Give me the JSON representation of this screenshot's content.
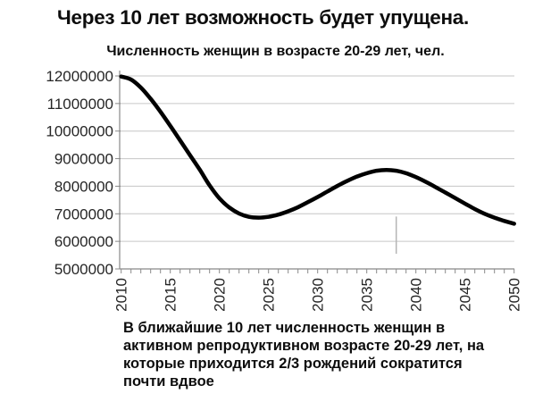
{
  "slide": {
    "title": "Через 10 лет возможность будет упущена.",
    "caption": [
      "В ближайшие 10 лет численность женщин в",
      "активном репродуктивном возрасте 20-29 лет, на",
      "которые приходится 2/3 рождений сократится",
      "почти вдвое"
    ]
  },
  "chart_data": {
    "type": "line",
    "title": "Численность женщин в возрасте 20-29 лет, чел.",
    "xlabel": "",
    "ylabel": "",
    "xlim": [
      2010,
      2050
    ],
    "ylim": [
      5000000,
      12000000
    ],
    "grid": true,
    "legend": false,
    "line_color": "#000000",
    "gridline_color": "#c6c6c6",
    "axis_color": "#898989",
    "marker_color": "#b5b5b5",
    "y_ticks": [
      5000000,
      6000000,
      7000000,
      8000000,
      9000000,
      10000000,
      11000000,
      12000000
    ],
    "x_ticks": [
      2010,
      2015,
      2020,
      2025,
      2030,
      2035,
      2040,
      2045,
      2050
    ],
    "x": [
      2010,
      2011,
      2012,
      2013,
      2014,
      2015,
      2016,
      2017,
      2018,
      2019,
      2020,
      2021,
      2022,
      2023,
      2024,
      2025,
      2026,
      2027,
      2028,
      2029,
      2030,
      2031,
      2032,
      2033,
      2034,
      2035,
      2036,
      2037,
      2038,
      2039,
      2040,
      2041,
      2042,
      2043,
      2044,
      2045,
      2046,
      2047,
      2048,
      2049,
      2050
    ],
    "series": [
      {
        "name": "Численность женщин 20-29 лет, чел.",
        "values": [
          11980000,
          11870000,
          11580000,
          11170000,
          10700000,
          10190000,
          9660000,
          9130000,
          8600000,
          8030000,
          7560000,
          7230000,
          7010000,
          6890000,
          6860000,
          6890000,
          6970000,
          7090000,
          7240000,
          7420000,
          7610000,
          7810000,
          8010000,
          8190000,
          8350000,
          8470000,
          8560000,
          8590000,
          8560000,
          8470000,
          8330000,
          8160000,
          7970000,
          7770000,
          7570000,
          7370000,
          7170000,
          7000000,
          6860000,
          6740000,
          6640000
        ]
      }
    ],
    "stray_marker": {
      "year": 2038,
      "value_from": 5550000,
      "value_to": 6900000
    }
  }
}
